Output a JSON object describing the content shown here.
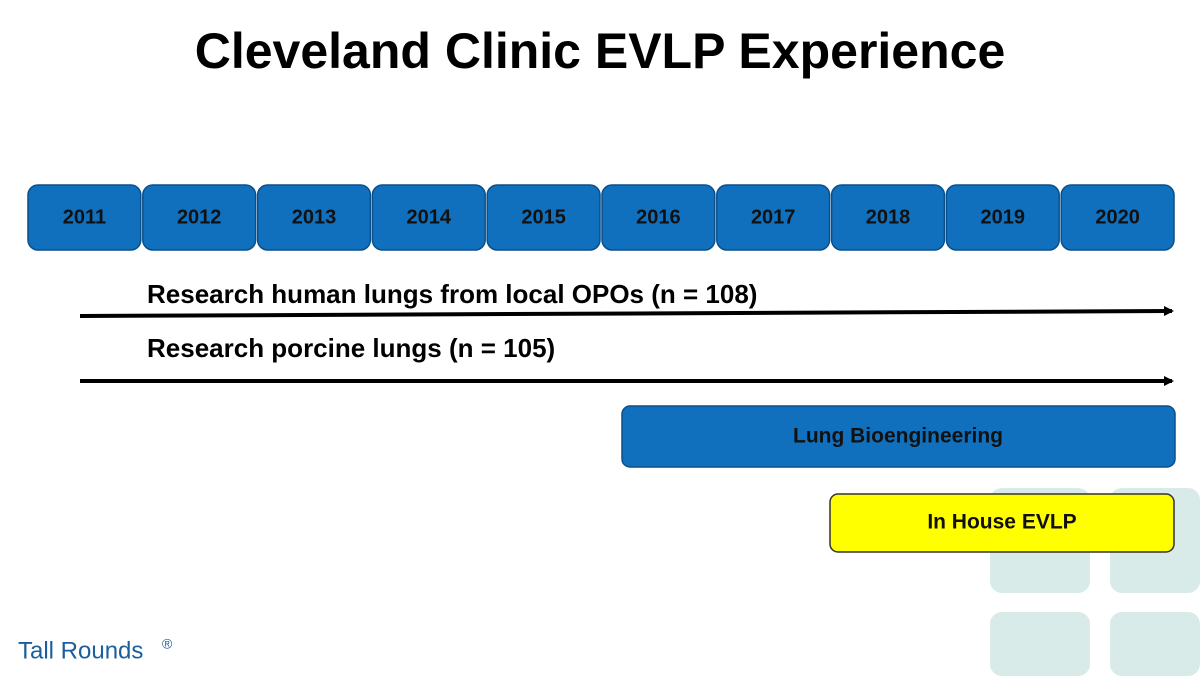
{
  "header": {
    "title": "Cleveland Clinic EVLP Experience"
  },
  "timeline": {
    "years": [
      "2011",
      "2012",
      "2013",
      "2014",
      "2015",
      "2016",
      "2017",
      "2018",
      "2019",
      "2020"
    ]
  },
  "arrows": [
    {
      "label": "Research human lungs from local OPOs (n = 108)"
    },
    {
      "label": "Research porcine lungs (n = 105)"
    }
  ],
  "bars": [
    {
      "label": "Lung Bioengineering"
    },
    {
      "label": "In House EVLP"
    }
  ],
  "footer": {
    "brand": "Tall Rounds",
    "mark": "®"
  }
}
